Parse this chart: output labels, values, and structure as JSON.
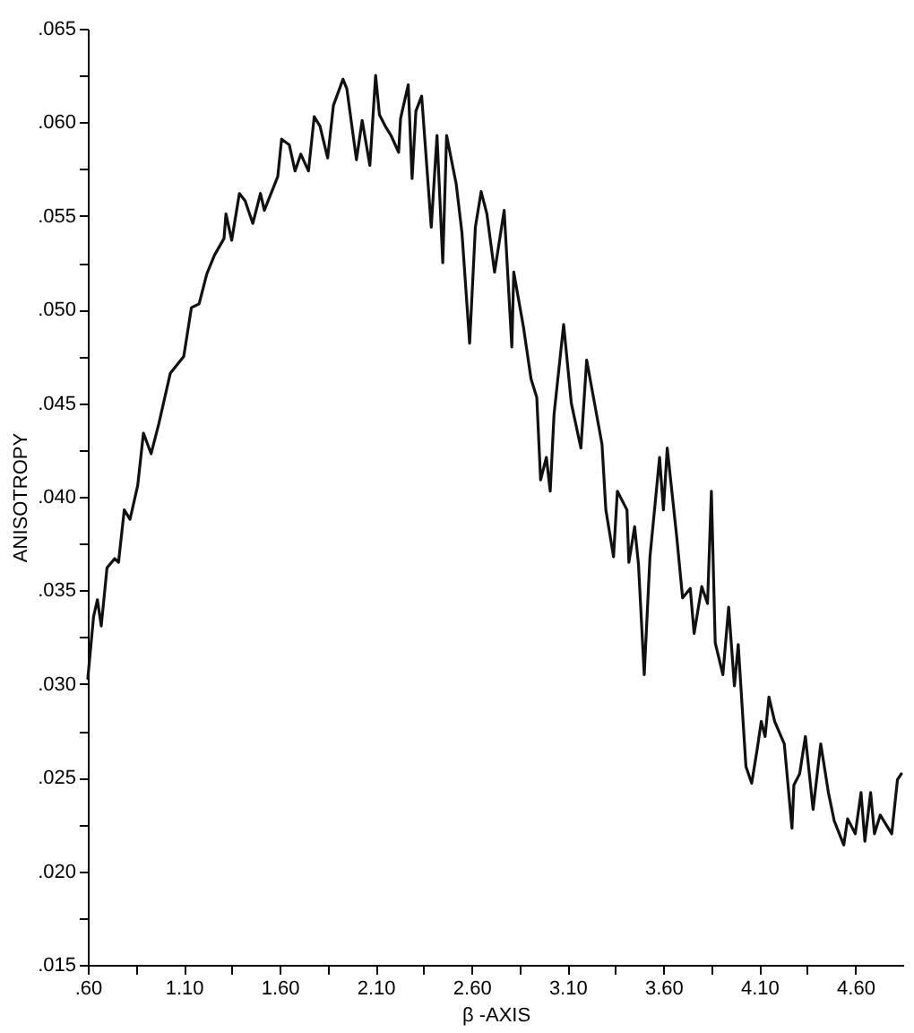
{
  "chart_data": {
    "type": "line",
    "xlabel": "β -AXIS",
    "ylabel": "ANISOTROPY",
    "x": [
      0.6,
      0.63,
      0.65,
      0.67,
      0.7,
      0.74,
      0.76,
      0.79,
      0.82,
      0.86,
      0.89,
      0.93,
      0.97,
      1.03,
      1.1,
      1.14,
      1.18,
      1.22,
      1.26,
      1.31,
      1.32,
      1.35,
      1.39,
      1.42,
      1.46,
      1.5,
      1.52,
      1.59,
      1.61,
      1.65,
      1.68,
      1.71,
      1.75,
      1.78,
      1.81,
      1.85,
      1.88,
      1.93,
      1.95,
      2.0,
      2.03,
      2.07,
      2.1,
      2.12,
      2.15,
      2.18,
      2.22,
      2.23,
      2.27,
      2.29,
      2.31,
      2.34,
      2.39,
      2.42,
      2.45,
      2.47,
      2.52,
      2.55,
      2.59,
      2.62,
      2.65,
      2.68,
      2.72,
      2.77,
      2.81,
      2.82,
      2.87,
      2.91,
      2.94,
      2.96,
      2.99,
      3.01,
      3.03,
      3.08,
      3.12,
      3.17,
      3.2,
      3.28,
      3.3,
      3.34,
      3.36,
      3.41,
      3.42,
      3.45,
      3.47,
      3.5,
      3.53,
      3.58,
      3.6,
      3.62,
      3.67,
      3.7,
      3.74,
      3.76,
      3.8,
      3.83,
      3.85,
      3.87,
      3.91,
      3.94,
      3.97,
      3.99,
      4.03,
      4.06,
      4.09,
      4.11,
      4.13,
      4.15,
      4.18,
      4.23,
      4.27,
      4.28,
      4.31,
      4.34,
      4.38,
      4.42,
      4.46,
      4.49,
      4.54,
      4.56,
      4.6,
      4.63,
      4.65,
      4.68,
      4.7,
      4.73,
      4.79,
      4.82,
      4.84
    ],
    "series": [
      {
        "color": "#111111",
        "values": [
          0.0303,
          0.0336,
          0.0345,
          0.0331,
          0.0362,
          0.0367,
          0.0365,
          0.0393,
          0.0388,
          0.0406,
          0.0434,
          0.0423,
          0.0439,
          0.0466,
          0.0475,
          0.0501,
          0.0503,
          0.0519,
          0.0529,
          0.0538,
          0.0551,
          0.0537,
          0.0562,
          0.0558,
          0.0546,
          0.0562,
          0.0553,
          0.0571,
          0.0591,
          0.0588,
          0.0574,
          0.0583,
          0.0574,
          0.0603,
          0.0598,
          0.0581,
          0.0609,
          0.0623,
          0.0618,
          0.058,
          0.0601,
          0.0577,
          0.0625,
          0.0604,
          0.0598,
          0.0593,
          0.0584,
          0.0602,
          0.062,
          0.057,
          0.0606,
          0.0614,
          0.0544,
          0.0593,
          0.0525,
          0.0593,
          0.0567,
          0.0541,
          0.0482,
          0.0544,
          0.0563,
          0.0551,
          0.052,
          0.0553,
          0.048,
          0.052,
          0.0491,
          0.0463,
          0.0453,
          0.0409,
          0.0421,
          0.0403,
          0.0444,
          0.0492,
          0.045,
          0.0426,
          0.0473,
          0.0428,
          0.0393,
          0.0368,
          0.0403,
          0.0393,
          0.0365,
          0.0384,
          0.0364,
          0.0305,
          0.0368,
          0.0421,
          0.0393,
          0.0426,
          0.0378,
          0.0346,
          0.0351,
          0.0327,
          0.0352,
          0.0343,
          0.0403,
          0.0322,
          0.0305,
          0.0341,
          0.0299,
          0.0321,
          0.0256,
          0.0247,
          0.0266,
          0.028,
          0.0272,
          0.0293,
          0.028,
          0.0268,
          0.0223,
          0.0246,
          0.0252,
          0.0272,
          0.0233,
          0.0268,
          0.0242,
          0.0227,
          0.0214,
          0.0228,
          0.022,
          0.0242,
          0.0216,
          0.0242,
          0.022,
          0.023,
          0.022,
          0.0249,
          0.0252
        ]
      }
    ],
    "xlim": [
      0.6,
      4.85
    ],
    "xticks": [
      {
        "value": 0.6,
        "label": ".60"
      },
      {
        "value": 0.85,
        "label": null
      },
      {
        "value": 1.1,
        "label": "1.10"
      },
      {
        "value": 1.35,
        "label": null
      },
      {
        "value": 1.6,
        "label": "1.60"
      },
      {
        "value": 1.85,
        "label": null
      },
      {
        "value": 2.1,
        "label": "2.10"
      },
      {
        "value": 2.35,
        "label": null
      },
      {
        "value": 2.6,
        "label": "2.60"
      },
      {
        "value": 2.85,
        "label": null
      },
      {
        "value": 3.1,
        "label": "3.10"
      },
      {
        "value": 3.35,
        "label": null
      },
      {
        "value": 3.6,
        "label": "3.60"
      },
      {
        "value": 3.85,
        "label": null
      },
      {
        "value": 4.1,
        "label": "4.10"
      },
      {
        "value": 4.35,
        "label": null
      },
      {
        "value": 4.6,
        "label": "4.60"
      }
    ],
    "ylim": [
      0.015,
      0.065
    ],
    "yticks": [
      {
        "value": 0.015,
        "label": ".015"
      },
      {
        "value": 0.0175,
        "label": null
      },
      {
        "value": 0.02,
        "label": ".020"
      },
      {
        "value": 0.0225,
        "label": null
      },
      {
        "value": 0.025,
        "label": ".025"
      },
      {
        "value": 0.0275,
        "label": null
      },
      {
        "value": 0.03,
        "label": ".030"
      },
      {
        "value": 0.0325,
        "label": null
      },
      {
        "value": 0.035,
        "label": ".035"
      },
      {
        "value": 0.0375,
        "label": null
      },
      {
        "value": 0.04,
        "label": ".040"
      },
      {
        "value": 0.0425,
        "label": null
      },
      {
        "value": 0.045,
        "label": ".045"
      },
      {
        "value": 0.0475,
        "label": null
      },
      {
        "value": 0.05,
        "label": ".050"
      },
      {
        "value": 0.0525,
        "label": null
      },
      {
        "value": 0.055,
        "label": ".055"
      },
      {
        "value": 0.0575,
        "label": null
      },
      {
        "value": 0.06,
        "label": ".060"
      },
      {
        "value": 0.0625,
        "label": null
      },
      {
        "value": 0.065,
        "label": ".065"
      }
    ],
    "grid": false,
    "line_style": "solid",
    "marker": "none"
  }
}
